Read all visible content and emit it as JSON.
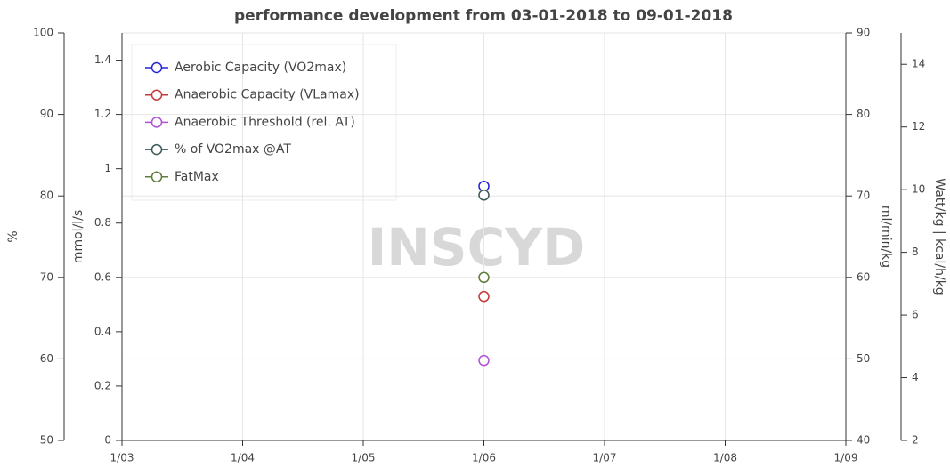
{
  "chart_data": {
    "type": "scatter",
    "title": "performance development from 03-01-2018 to 09-01-2018",
    "watermark": "INSCYD",
    "categories": [
      "1/03",
      "1/04",
      "1/05",
      "1/06",
      "1/07",
      "1/08",
      "1/09"
    ],
    "ylim": [
      50,
      100
    ],
    "yticks": [
      50,
      60,
      70,
      80,
      90,
      100
    ],
    "y_label": "%",
    "y2lim": [
      0,
      1.5
    ],
    "y2ticks": [
      0,
      0.2,
      0.4,
      0.6,
      0.8,
      1,
      1.2,
      1.4
    ],
    "y2_label": "mmol/l/s",
    "y3lim": [
      40,
      90
    ],
    "y3ticks": [
      40,
      50,
      60,
      70,
      80,
      90
    ],
    "y3_label": "ml/min/kg",
    "y4lim": [
      2,
      15
    ],
    "y4ticks": [
      2,
      4,
      6,
      8,
      10,
      12,
      14
    ],
    "y4_label": "Watt/kg | kcal/h/kg",
    "grid": true,
    "legend": "upper left",
    "series": [
      {
        "name": "Aerobic Capacity (VO2max)",
        "color": "#2323d8",
        "axis": "y3",
        "values": [
          null,
          null,
          null,
          71.2,
          null,
          null,
          null
        ]
      },
      {
        "name": "Anaerobic Capacity (VLamax)",
        "color": "#c43a3a",
        "axis": "y2",
        "values": [
          null,
          null,
          null,
          0.53,
          null,
          null,
          null
        ]
      },
      {
        "name": "Anaerobic Threshold (rel. AT)",
        "color": "#b050d8",
        "axis": "y4",
        "values": [
          null,
          null,
          null,
          4.55,
          null,
          null,
          null
        ]
      },
      {
        "name": "% of VO2max @AT",
        "color": "#3a5858",
        "axis": "y",
        "values": [
          null,
          null,
          null,
          80.1,
          null,
          null,
          null
        ]
      },
      {
        "name": "FatMax",
        "color": "#5e7c3a",
        "axis": "y4",
        "values": [
          null,
          null,
          null,
          7.2,
          null,
          null,
          null
        ]
      }
    ]
  }
}
